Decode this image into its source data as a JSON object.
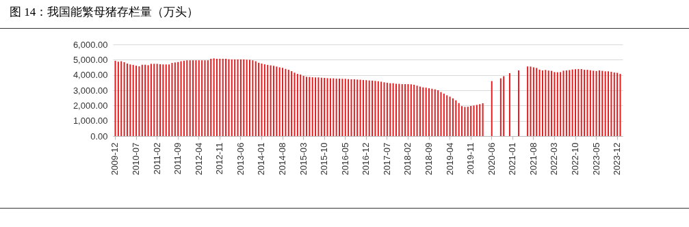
{
  "chart_data": {
    "type": "bar",
    "title": "图 14：我国能繁母猪存栏量（万头）",
    "categories": [
      "2009-12",
      null,
      null,
      null,
      null,
      null,
      null,
      "2010-07",
      null,
      null,
      null,
      null,
      null,
      null,
      "2011-02",
      null,
      null,
      null,
      null,
      null,
      null,
      "2011-09",
      null,
      null,
      null,
      null,
      null,
      null,
      "2012-04",
      null,
      null,
      null,
      null,
      null,
      null,
      "2012-11",
      null,
      null,
      null,
      null,
      null,
      null,
      "2013-06",
      null,
      null,
      null,
      null,
      null,
      null,
      "2014-01",
      null,
      null,
      null,
      null,
      null,
      null,
      "2014-08",
      null,
      null,
      null,
      null,
      null,
      null,
      "2015-03",
      null,
      null,
      null,
      null,
      null,
      null,
      "2015-10",
      null,
      null,
      null,
      null,
      null,
      null,
      "2016-05",
      null,
      null,
      null,
      null,
      null,
      null,
      "2016-12",
      null,
      null,
      null,
      null,
      null,
      null,
      "2017-07",
      null,
      null,
      null,
      null,
      null,
      null,
      "2018-02",
      null,
      null,
      null,
      null,
      null,
      null,
      "2018-09",
      null,
      null,
      null,
      null,
      null,
      null,
      "2019-04",
      null,
      null,
      null,
      null,
      null,
      null,
      "2019-11",
      null,
      null,
      null,
      null,
      null,
      null,
      "2020-06",
      null,
      null,
      null,
      null,
      null,
      null,
      "2021-01",
      null,
      null,
      null,
      null,
      null,
      null,
      "2021-08",
      null,
      null,
      null,
      null,
      null,
      null,
      "2022-03",
      null,
      null,
      null,
      null,
      null,
      null,
      "2022-10",
      null,
      null,
      null,
      null,
      null,
      null,
      "2023-05",
      null,
      null,
      null,
      null,
      null,
      null,
      "2023-12",
      null
    ],
    "series": [
      {
        "color": "#e31a1c",
        "values": [
          4930,
          4870,
          4900,
          4840,
          4750,
          4690,
          4660,
          4610,
          4570,
          4670,
          4670,
          4640,
          4730,
          4730,
          4730,
          4700,
          4690,
          4690,
          4690,
          4790,
          4820,
          4850,
          4900,
          4930,
          4960,
          4960,
          4960,
          4960,
          4960,
          4960,
          4960,
          4960,
          5060,
          5090,
          5060,
          5060,
          5060,
          5060,
          5030,
          5020,
          5020,
          5020,
          5020,
          5020,
          5000,
          4990,
          4960,
          4900,
          4800,
          4750,
          4700,
          4660,
          4630,
          4600,
          4550,
          4500,
          4470,
          4400,
          4340,
          4250,
          4150,
          4070,
          4030,
          3940,
          3880,
          3870,
          3850,
          3840,
          3840,
          3820,
          3810,
          3790,
          3780,
          3780,
          3760,
          3760,
          3750,
          3750,
          3730,
          3720,
          3720,
          3700,
          3690,
          3670,
          3660,
          3640,
          3630,
          3610,
          3590,
          3560,
          3520,
          3490,
          3460,
          3460,
          3430,
          3420,
          3400,
          3400,
          3400,
          3390,
          3360,
          3300,
          3240,
          3190,
          3170,
          3130,
          3100,
          3060,
          3000,
          2880,
          2780,
          2670,
          2580,
          2470,
          2340,
          2160,
          1960,
          1910,
          1920,
          1970,
          2000,
          2040,
          2090,
          2150,
          null,
          null,
          3600,
          null,
          null,
          3780,
          3920,
          null,
          4120,
          null,
          null,
          4300,
          null,
          null,
          4560,
          4550,
          4500,
          4460,
          4350,
          4300,
          4330,
          4290,
          4270,
          4190,
          4180,
          4190,
          4280,
          4300,
          4320,
          4360,
          4380,
          4390,
          4390,
          4340,
          4340,
          4310,
          4280,
          4260,
          4300,
          4270,
          4240,
          4240,
          4210,
          4160,
          4140,
          4070
        ]
      }
    ],
    "ylim": [
      0,
      6000
    ],
    "yticks": [
      {
        "value": 0,
        "label": "0.00"
      },
      {
        "value": 1000,
        "label": "1,000.00"
      },
      {
        "value": 2000,
        "label": "2,000.00"
      },
      {
        "value": 3000,
        "label": "3,000.00"
      },
      {
        "value": 4000,
        "label": "4,000.00"
      },
      {
        "value": 5000,
        "label": "5,000.00"
      },
      {
        "value": 6000,
        "label": "6,000.00"
      }
    ],
    "grid": "y"
  }
}
